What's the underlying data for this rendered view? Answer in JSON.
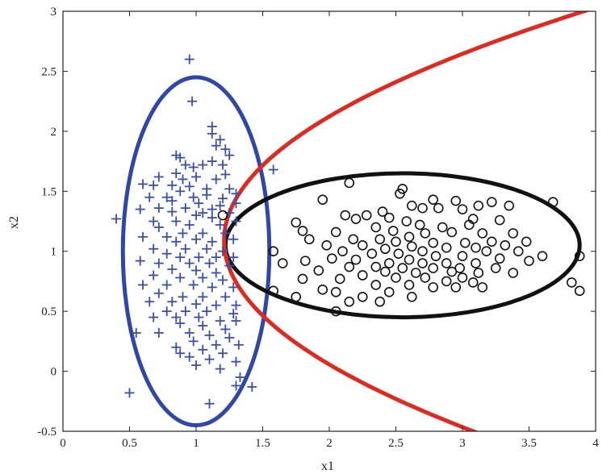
{
  "chart_data": {
    "type": "scatter",
    "xlabel": "x1",
    "ylabel": "x2",
    "xlim": [
      0,
      4
    ],
    "ylim": [
      -0.5,
      3
    ],
    "xticks": [
      0,
      0.5,
      1,
      1.5,
      2,
      2.5,
      3,
      3.5,
      4
    ],
    "yticks": [
      -0.5,
      0,
      0.5,
      1,
      1.5,
      2,
      2.5,
      3
    ],
    "xtick_labels": [
      "0",
      "0.5",
      "1",
      "1.5",
      "2",
      "2.5",
      "3",
      "3.5",
      "4"
    ],
    "ytick_labels": [
      "-0.5",
      "0",
      "0.5",
      "1",
      "1.5",
      "2",
      "2.5",
      "3"
    ],
    "grid": false,
    "colors": {
      "plus": "#3a4fa8",
      "circle": "#111111",
      "parabola": "#e02a20",
      "blue_ellipse": "#2f47a8",
      "black_ellipse": "#111111"
    },
    "series": [
      {
        "marker": "plus",
        "color": "#3a4fa8",
        "points": [
          [
            0.95,
            2.6
          ],
          [
            0.97,
            2.25
          ],
          [
            1.12,
            2.04
          ],
          [
            1.12,
            1.98
          ],
          [
            1.18,
            1.93
          ],
          [
            1.15,
            1.88
          ],
          [
            1.22,
            1.85
          ],
          [
            1.25,
            1.8
          ],
          [
            0.85,
            1.8
          ],
          [
            0.88,
            1.78
          ],
          [
            1.12,
            1.75
          ],
          [
            0.92,
            1.72
          ],
          [
            1.05,
            1.72
          ],
          [
            0.98,
            1.7
          ],
          [
            1.2,
            1.72
          ],
          [
            1.58,
            1.68
          ],
          [
            0.85,
            1.65
          ],
          [
            1.0,
            1.62
          ],
          [
            1.22,
            1.64
          ],
          [
            0.72,
            1.62
          ],
          [
            0.9,
            1.6
          ],
          [
            1.15,
            1.6
          ],
          [
            0.6,
            1.56
          ],
          [
            0.68,
            1.55
          ],
          [
            0.82,
            1.55
          ],
          [
            0.95,
            1.54
          ],
          [
            1.08,
            1.52
          ],
          [
            1.25,
            1.52
          ],
          [
            1.08,
            1.47
          ],
          [
            0.88,
            1.5
          ],
          [
            1.3,
            1.48
          ],
          [
            0.65,
            1.45
          ],
          [
            0.78,
            1.45
          ],
          [
            0.98,
            1.45
          ],
          [
            1.2,
            1.44
          ],
          [
            0.82,
            1.42
          ],
          [
            1.02,
            1.4
          ],
          [
            1.18,
            1.38
          ],
          [
            1.3,
            1.4
          ],
          [
            0.72,
            1.36
          ],
          [
            0.92,
            1.36
          ],
          [
            1.12,
            1.35
          ],
          [
            0.58,
            1.35
          ],
          [
            0.82,
            1.33
          ],
          [
            1.05,
            1.32
          ],
          [
            1.25,
            1.32
          ],
          [
            1.0,
            1.3
          ],
          [
            0.4,
            1.27
          ],
          [
            0.68,
            1.25
          ],
          [
            0.85,
            1.25
          ],
          [
            1.12,
            1.28
          ],
          [
            1.3,
            1.25
          ],
          [
            0.72,
            1.2
          ],
          [
            0.95,
            1.22
          ],
          [
            1.18,
            1.22
          ],
          [
            0.9,
            1.15
          ],
          [
            1.05,
            1.15
          ],
          [
            1.22,
            1.15
          ],
          [
            0.6,
            1.12
          ],
          [
            0.78,
            1.12
          ],
          [
            0.85,
            1.08
          ],
          [
            1.0,
            1.1
          ],
          [
            1.12,
            1.08
          ],
          [
            1.28,
            1.1
          ],
          [
            0.68,
            1.02
          ],
          [
            0.92,
            1.02
          ],
          [
            1.08,
            1.02
          ],
          [
            1.2,
            1.0
          ],
          [
            0.78,
            0.98
          ],
          [
            0.88,
            0.95
          ],
          [
            1.02,
            0.95
          ],
          [
            1.15,
            0.95
          ],
          [
            1.28,
            0.95
          ],
          [
            0.58,
            0.92
          ],
          [
            0.72,
            0.9
          ],
          [
            0.95,
            0.9
          ],
          [
            1.1,
            0.9
          ],
          [
            1.25,
            0.88
          ],
          [
            0.82,
            0.85
          ],
          [
            1.0,
            0.84
          ],
          [
            1.15,
            0.82
          ],
          [
            0.68,
            0.8
          ],
          [
            0.88,
            0.78
          ],
          [
            1.05,
            0.78
          ],
          [
            1.2,
            0.76
          ],
          [
            0.6,
            0.72
          ],
          [
            0.78,
            0.72
          ],
          [
            0.98,
            0.72
          ],
          [
            1.12,
            0.7
          ],
          [
            1.28,
            0.7
          ],
          [
            0.72,
            0.65
          ],
          [
            0.9,
            0.62
          ],
          [
            1.05,
            0.62
          ],
          [
            1.22,
            0.62
          ],
          [
            0.65,
            0.58
          ],
          [
            0.82,
            0.58
          ],
          [
            1.0,
            0.56
          ],
          [
            1.15,
            0.55
          ],
          [
            1.3,
            0.55
          ],
          [
            0.78,
            0.5
          ],
          [
            0.92,
            0.5
          ],
          [
            1.08,
            0.5
          ],
          [
            1.28,
            0.48
          ],
          [
            0.68,
            0.45
          ],
          [
            0.85,
            0.45
          ],
          [
            1.02,
            0.45
          ],
          [
            1.18,
            0.42
          ],
          [
            1.3,
            0.42
          ],
          [
            0.88,
            0.4
          ],
          [
            1.05,
            0.38
          ],
          [
            1.22,
            0.35
          ],
          [
            0.72,
            0.32
          ],
          [
            0.95,
            0.32
          ],
          [
            0.55,
            0.32
          ],
          [
            1.1,
            0.3
          ],
          [
            1.25,
            0.28
          ],
          [
            0.98,
            0.25
          ],
          [
            1.15,
            0.22
          ],
          [
            1.32,
            0.22
          ],
          [
            0.85,
            0.2
          ],
          [
            1.05,
            0.18
          ],
          [
            0.88,
            0.15
          ],
          [
            1.2,
            0.15
          ],
          [
            0.95,
            0.12
          ],
          [
            1.1,
            0.1
          ],
          [
            1.3,
            0.08
          ],
          [
            1.0,
            0.05
          ],
          [
            1.18,
            0.02
          ],
          [
            1.33,
            -0.05
          ],
          [
            1.42,
            -0.13
          ],
          [
            1.3,
            -0.12
          ],
          [
            0.5,
            -0.18
          ],
          [
            1.1,
            -0.27
          ]
        ]
      },
      {
        "marker": "circle",
        "color": "#111111",
        "points": [
          [
            2.15,
            1.57
          ],
          [
            2.55,
            1.52
          ],
          [
            2.53,
            1.48
          ],
          [
            1.95,
            1.43
          ],
          [
            2.78,
            1.43
          ],
          [
            2.95,
            1.42
          ],
          [
            3.35,
            1.38
          ],
          [
            3.22,
            1.41
          ],
          [
            3.12,
            1.38
          ],
          [
            3.68,
            1.41
          ],
          [
            2.62,
            1.38
          ],
          [
            2.7,
            1.36
          ],
          [
            2.82,
            1.36
          ],
          [
            3.0,
            1.35
          ],
          [
            2.4,
            1.33
          ],
          [
            2.28,
            1.3
          ],
          [
            2.45,
            1.28
          ],
          [
            2.12,
            1.3
          ],
          [
            2.2,
            1.27
          ],
          [
            1.75,
            1.24
          ],
          [
            3.08,
            1.27
          ],
          [
            3.28,
            1.26
          ],
          [
            2.58,
            1.25
          ],
          [
            2.68,
            1.22
          ],
          [
            2.85,
            1.2
          ],
          [
            3.05,
            1.22
          ],
          [
            2.35,
            1.2
          ],
          [
            2.48,
            1.17
          ],
          [
            1.8,
            1.17
          ],
          [
            2.05,
            1.16
          ],
          [
            2.72,
            1.15
          ],
          [
            2.92,
            1.16
          ],
          [
            3.15,
            1.15
          ],
          [
            3.38,
            1.15
          ],
          [
            2.6,
            1.12
          ],
          [
            2.38,
            1.1
          ],
          [
            2.18,
            1.1
          ],
          [
            1.85,
            1.1
          ],
          [
            2.5,
            1.08
          ],
          [
            2.78,
            1.07
          ],
          [
            3.02,
            1.07
          ],
          [
            3.22,
            1.08
          ],
          [
            3.48,
            1.08
          ],
          [
            1.98,
            1.05
          ],
          [
            2.25,
            1.05
          ],
          [
            2.62,
            1.04
          ],
          [
            2.88,
            1.03
          ],
          [
            3.1,
            1.03
          ],
          [
            3.32,
            1.05
          ],
          [
            2.42,
            1.02
          ],
          [
            2.7,
            1.0
          ],
          [
            2.1,
            1.0
          ],
          [
            3.18,
            1.0
          ],
          [
            3.42,
            1.0
          ],
          [
            3.88,
            0.96
          ],
          [
            2.52,
            0.98
          ],
          [
            2.32,
            0.98
          ],
          [
            2.8,
            0.96
          ],
          [
            3.0,
            0.96
          ],
          [
            3.6,
            0.96
          ],
          [
            1.58,
            1.0
          ],
          [
            1.65,
            0.9
          ],
          [
            1.82,
            0.92
          ],
          [
            2.02,
            0.94
          ],
          [
            2.2,
            0.93
          ],
          [
            2.6,
            0.93
          ],
          [
            3.28,
            0.94
          ],
          [
            2.45,
            0.9
          ],
          [
            2.7,
            0.9
          ],
          [
            2.88,
            0.9
          ],
          [
            3.1,
            0.9
          ],
          [
            3.5,
            0.92
          ],
          [
            2.15,
            0.87
          ],
          [
            2.35,
            0.87
          ],
          [
            2.55,
            0.86
          ],
          [
            2.78,
            0.86
          ],
          [
            2.98,
            0.86
          ],
          [
            3.25,
            0.86
          ],
          [
            1.92,
            0.84
          ],
          [
            2.42,
            0.83
          ],
          [
            2.65,
            0.82
          ],
          [
            2.92,
            0.83
          ],
          [
            3.12,
            0.82
          ],
          [
            3.38,
            0.82
          ],
          [
            2.25,
            0.8
          ],
          [
            2.5,
            0.78
          ],
          [
            2.72,
            0.78
          ],
          [
            3.0,
            0.78
          ],
          [
            1.8,
            0.77
          ],
          [
            2.08,
            0.77
          ],
          [
            2.88,
            0.75
          ],
          [
            3.08,
            0.74
          ],
          [
            3.82,
            0.74
          ],
          [
            2.35,
            0.72
          ],
          [
            2.6,
            0.72
          ],
          [
            2.78,
            0.7
          ],
          [
            2.95,
            0.7
          ],
          [
            3.15,
            0.7
          ],
          [
            3.88,
            0.67
          ],
          [
            1.95,
            0.68
          ],
          [
            2.05,
            0.66
          ],
          [
            2.45,
            0.66
          ],
          [
            1.58,
            0.67
          ],
          [
            2.62,
            0.62
          ],
          [
            2.25,
            0.62
          ],
          [
            1.75,
            0.62
          ],
          [
            2.15,
            0.58
          ],
          [
            2.38,
            0.58
          ],
          [
            2.05,
            0.5
          ],
          [
            1.2,
            1.3
          ]
        ]
      }
    ],
    "curves": [
      {
        "kind": "ellipse",
        "color": "#2f47a8",
        "center": [
          1.0,
          1.0
        ],
        "radii": [
          0.55,
          1.45
        ]
      },
      {
        "kind": "ellipse",
        "color": "#111111",
        "center": [
          2.55,
          1.05
        ],
        "radii": [
          1.33,
          0.6
        ]
      },
      {
        "kind": "parabola",
        "color": "#e02a20",
        "vertex": [
          1.21,
          1.09
        ],
        "coef": 0.74
      }
    ]
  }
}
